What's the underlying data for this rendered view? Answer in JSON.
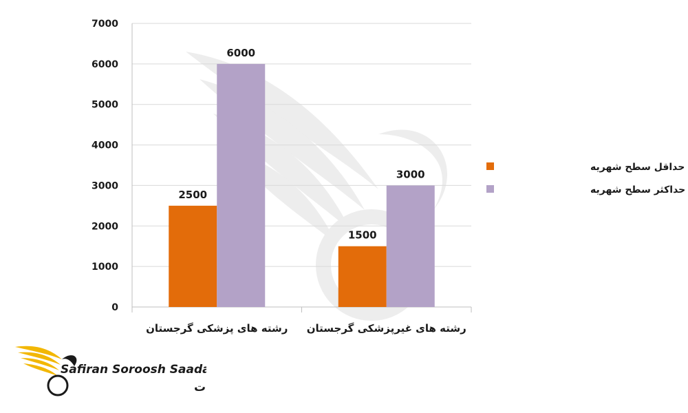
{
  "chart_data": {
    "type": "bar",
    "categories": [
      "رشته های پزشکی گرجستان",
      "رشته های غیرپزشکی گرجستان"
    ],
    "series": [
      {
        "name": "حداقل سطح شهریه",
        "values": [
          2500,
          1500
        ],
        "color": "#e36c0a"
      },
      {
        "name": "حداکثر سطح شهریه",
        "values": [
          6000,
          3000
        ],
        "color": "#b3a2c7"
      }
    ],
    "ylim": [
      0,
      7000
    ],
    "yticks": [
      0,
      1000,
      2000,
      3000,
      4000,
      5000,
      6000,
      7000
    ],
    "grid": true,
    "legend_position": "right",
    "data_labels": true
  },
  "branding": {
    "logo_text_en": "Safiran Soroosh Saadat",
    "logo_text_fa": "سفیران سروش سعادت",
    "logo_color": "#f2b705",
    "watermark_icon": "bird-icon"
  }
}
